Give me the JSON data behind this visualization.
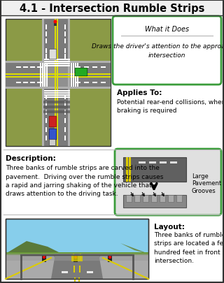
{
  "title": "4.1 - Intersection Rumble Strips",
  "bg_color": "#ffffff",
  "border_color": "#333333",
  "green_border": "#3a9c3a",
  "what_it_does_title": "What it Does",
  "what_it_does_text": "Draws the driver's attention to the approaching\nintersection",
  "applies_to_label": "Applies To:",
  "applies_to_text": "Potential rear-end collisions, where hard\nbraking is required",
  "description_label": "Description:",
  "description_text": "Three banks of rumble strips are carved into the\npavement.  Driving over the rumble strips causes\na rapid and jarring shaking of the vehicle that\ndraws attention to the driving task.",
  "large_pavement_label": "Large\nPavement\nGrooves",
  "layout_label": "Layout:",
  "layout_text": "Three banks of rumble\nstrips are located a few\nhundred feet in front of the\nintersection.",
  "olive_green": "#8b9a46",
  "road_gray": "#7a7a7a",
  "road_gray2": "#909090",
  "sky_blue": "#87ceeb",
  "hill_green": "#6b8e4e",
  "grass_green": "#7a9e4e"
}
